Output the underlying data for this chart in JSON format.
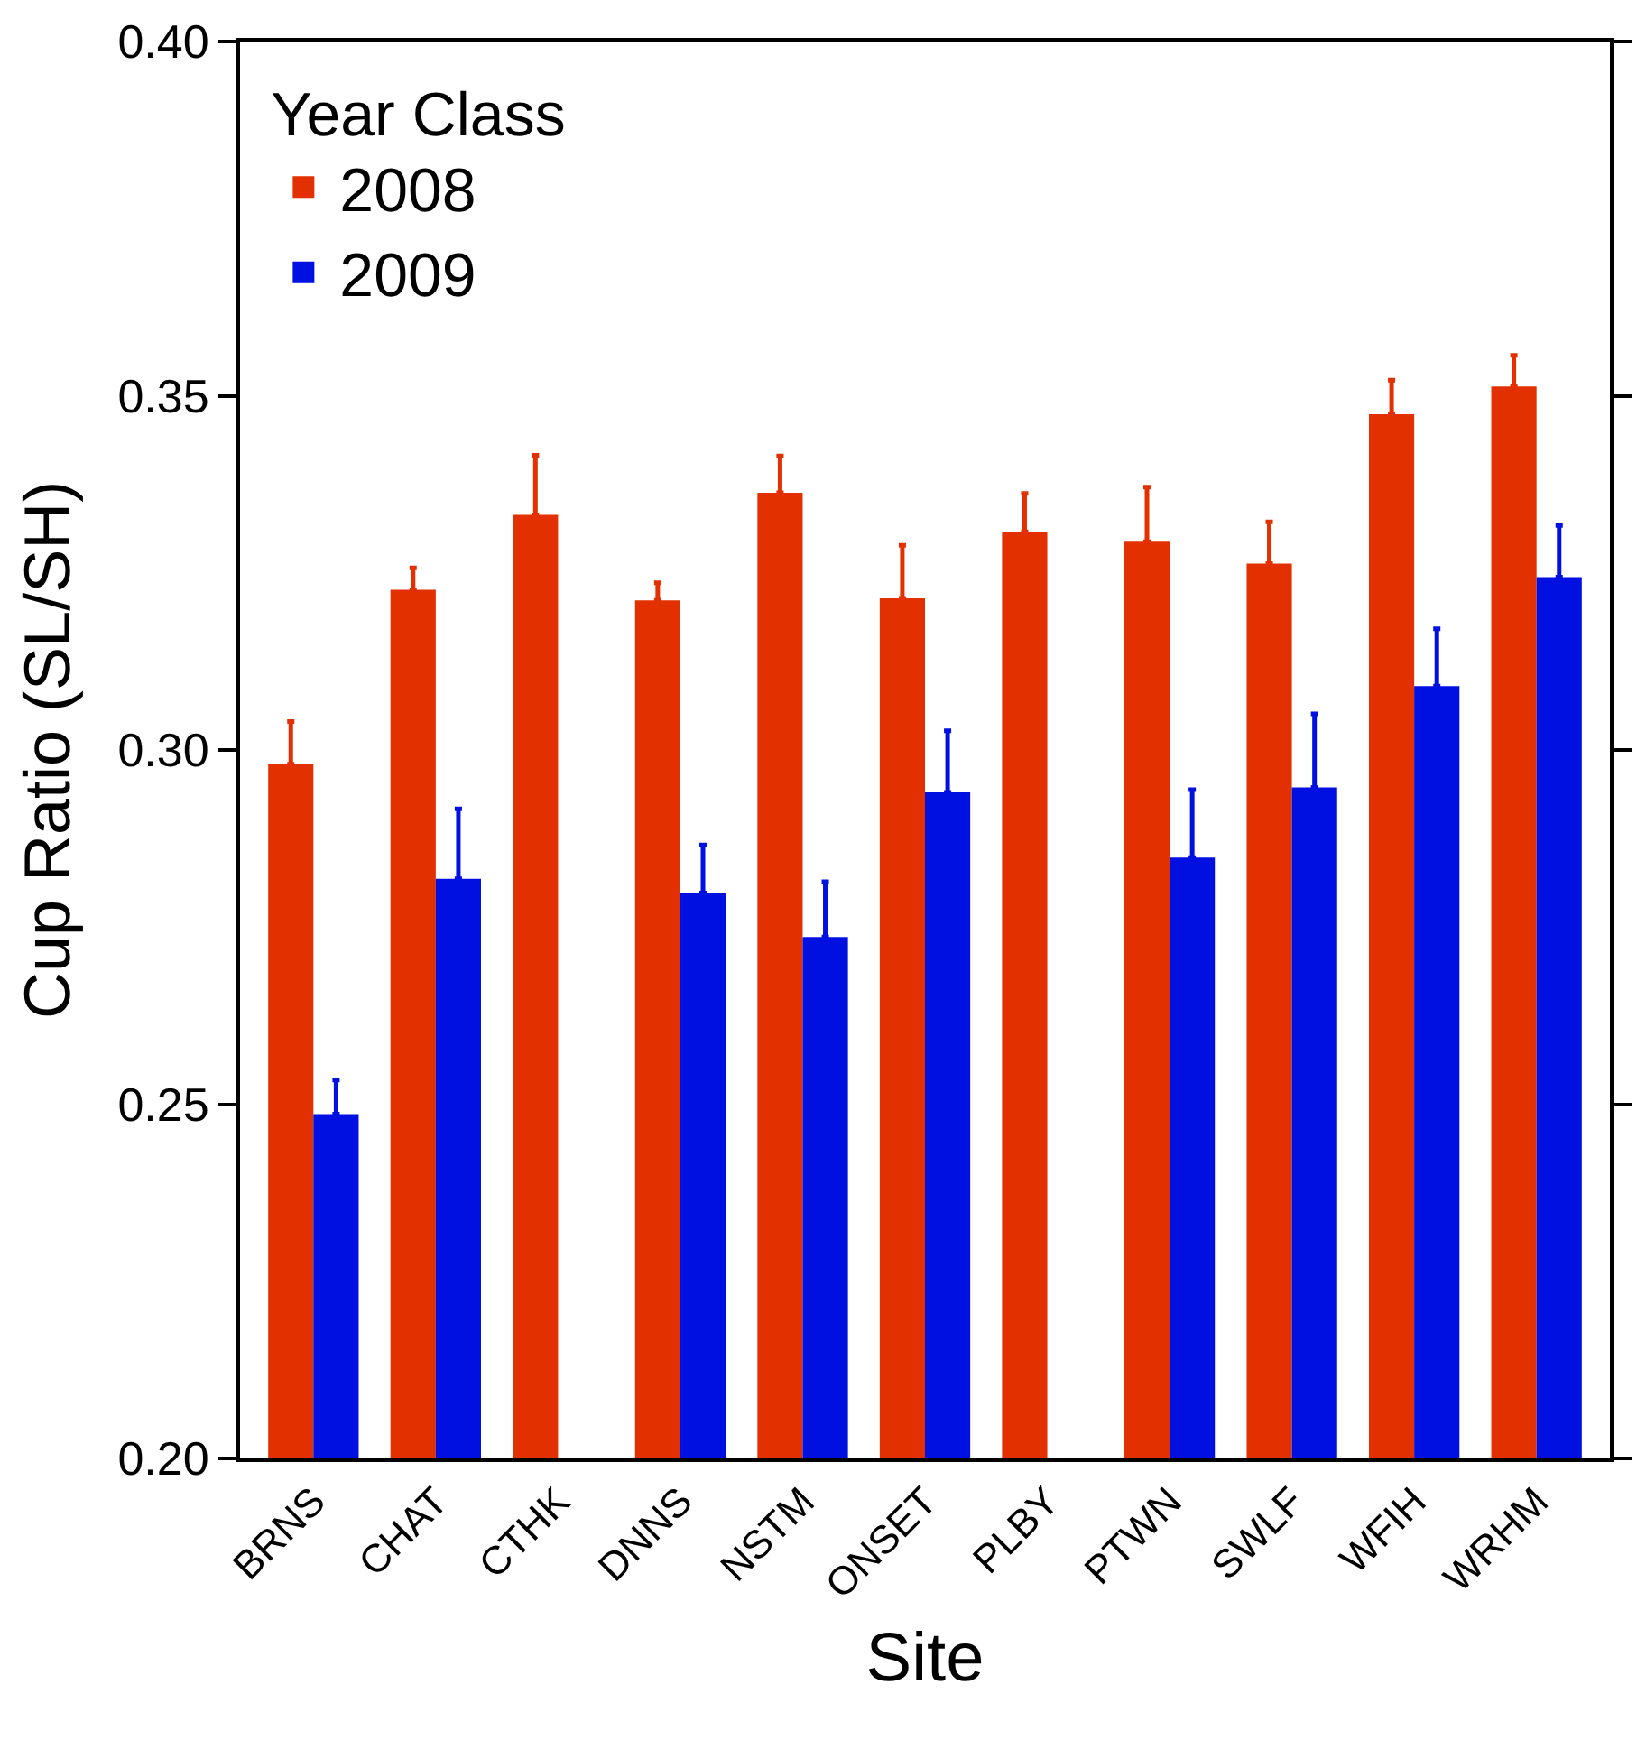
{
  "chart_data": {
    "type": "bar",
    "xlabel": "Site",
    "ylabel": "Cup Ratio (SL/SH)",
    "legend_title": "Year Class",
    "legend": "top left",
    "categories": [
      "BRNS",
      "CHAT",
      "CTHK",
      "DNNS",
      "NSTM",
      "ONSET",
      "PLBY",
      "PTWN",
      "SWLF",
      "WFIH",
      "WRHM"
    ],
    "ylim": [
      0.2,
      0.4
    ],
    "yticks": [
      {
        "value": 0.2,
        "label": "0.20"
      },
      {
        "value": 0.25,
        "label": "0.25"
      },
      {
        "value": 0.3,
        "label": "0.30"
      },
      {
        "value": 0.35,
        "label": "0.35"
      },
      {
        "value": 0.4,
        "label": "0.40"
      }
    ],
    "series": [
      {
        "name": "2008",
        "color": "#e33000",
        "values": [
          0.298,
          0.3226,
          0.3332,
          0.3211,
          0.3363,
          0.3214,
          0.3308,
          0.3294,
          0.3263,
          0.3474,
          0.3513
        ],
        "errors": [
          [
            0.298,
            0.304
          ],
          [
            0.3226,
            0.3257
          ],
          [
            0.3332,
            0.3416
          ],
          [
            0.3211,
            0.3236
          ],
          [
            0.3363,
            0.3415
          ],
          [
            0.3214,
            0.3289
          ],
          [
            0.3308,
            0.3362
          ],
          [
            0.3294,
            0.3371
          ],
          [
            0.3263,
            0.3322
          ],
          [
            0.3474,
            0.3522
          ],
          [
            0.3513,
            0.3557
          ]
        ]
      },
      {
        "name": "2009",
        "color": "#0010e0",
        "values": [
          0.2486,
          0.2818,
          null,
          0.2798,
          0.2736,
          0.294,
          null,
          0.2848,
          0.2947,
          0.309,
          0.3244
        ],
        "errors": [
          [
            0.2486,
            0.2534
          ],
          [
            0.2818,
            0.2917
          ],
          null,
          [
            0.2798,
            0.2866
          ],
          [
            0.2736,
            0.2814
          ],
          [
            0.294,
            0.3027
          ],
          null,
          [
            0.2848,
            0.2944
          ],
          [
            0.2947,
            0.3051
          ],
          [
            0.309,
            0.3171
          ],
          [
            0.3244,
            0.3317
          ]
        ]
      }
    ]
  }
}
